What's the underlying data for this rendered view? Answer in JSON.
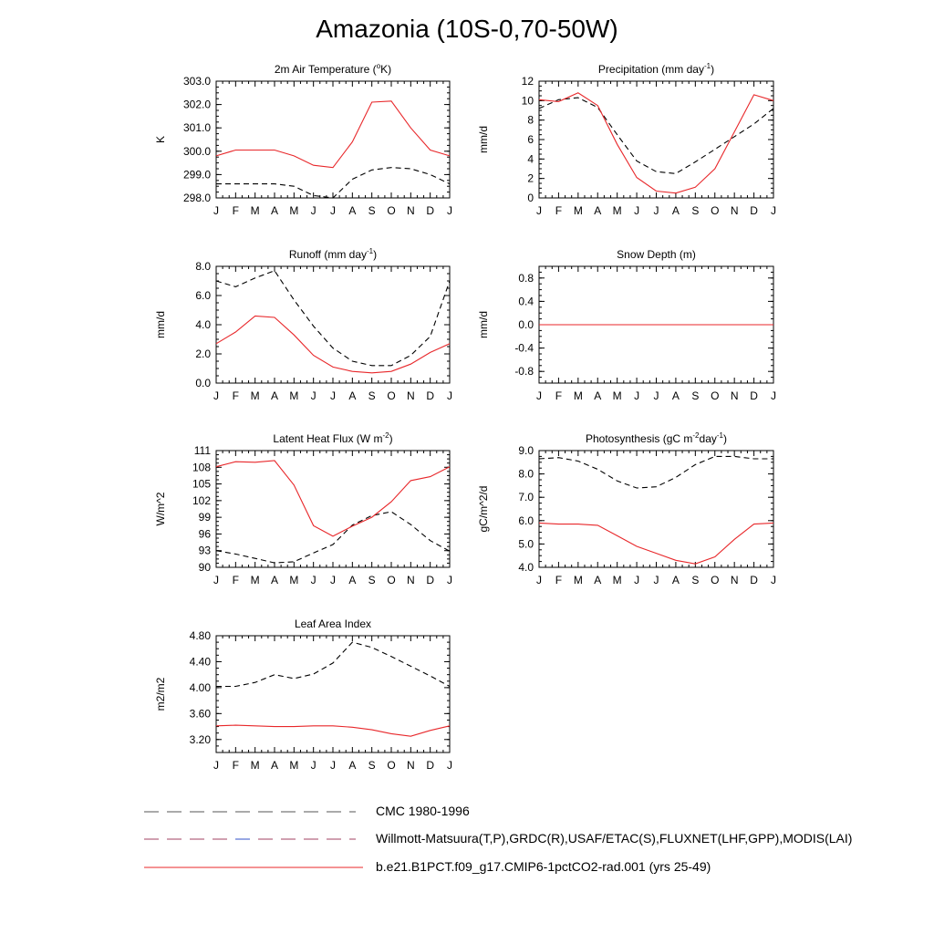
{
  "figure": {
    "title": "Amazonia (10S-0,70-50W)"
  },
  "colors": {
    "model": "#e8272a",
    "obs": "#000000",
    "obs_alt": "#3050c8"
  },
  "legend": [
    {
      "label": "CMC 1980-1996",
      "style": "dashed",
      "color": "#555555"
    },
    {
      "label": "Willmott-Matsuura(T,P),GRDC(R),USAF/ETAC(S),FLUXNET(LHF,GPP),MODIS(LAI)",
      "style": "dashed-multi",
      "color": "#a04060"
    },
    {
      "label": "b.e21.B1PCT.f09_g17.CMIP6-1pctCO2-rad.001 (yrs 25-49)",
      "style": "solid",
      "color": "#e8272a"
    }
  ],
  "chart_data": [
    {
      "type": "line",
      "title": "2m Air Temperature (°K)",
      "ylabel": "K",
      "ylim": [
        298.0,
        303.0
      ],
      "yticks": [
        "298.0",
        "299.0",
        "300.0",
        "301.0",
        "302.0",
        "303.0"
      ],
      "x": [
        "J",
        "F",
        "M",
        "A",
        "M",
        "J",
        "J",
        "A",
        "S",
        "O",
        "N",
        "D",
        "J"
      ],
      "series": [
        {
          "style": "solid",
          "values": [
            299.8,
            300.05,
            300.05,
            300.05,
            299.8,
            299.4,
            299.3,
            300.4,
            302.1,
            302.15,
            301.0,
            300.05,
            299.8
          ]
        },
        {
          "style": "dashed",
          "values": [
            298.6,
            298.6,
            298.6,
            298.6,
            298.5,
            298.1,
            298.0,
            298.8,
            299.2,
            299.3,
            299.25,
            299.0,
            298.6
          ]
        }
      ]
    },
    {
      "type": "line",
      "title": "Precipitation (mm day-1)",
      "ylabel": "mm/d",
      "ylim": [
        0,
        12
      ],
      "yticks": [
        "0",
        "2",
        "4",
        "6",
        "8",
        "10",
        "12"
      ],
      "x": [
        "J",
        "F",
        "M",
        "A",
        "M",
        "J",
        "J",
        "A",
        "S",
        "O",
        "N",
        "D",
        "J"
      ],
      "series": [
        {
          "style": "solid",
          "values": [
            10.1,
            9.9,
            10.8,
            9.5,
            5.5,
            2.1,
            0.7,
            0.5,
            1.1,
            3.0,
            6.8,
            10.6,
            10.0
          ]
        },
        {
          "style": "dashed",
          "values": [
            9.2,
            10.1,
            10.3,
            9.3,
            6.5,
            3.8,
            2.7,
            2.5,
            3.7,
            5.0,
            6.3,
            7.6,
            9.2
          ]
        }
      ]
    },
    {
      "type": "line",
      "title": "Runoff (mm day-1)",
      "ylabel": "mm/d",
      "ylim": [
        0.0,
        8.0
      ],
      "yticks": [
        "0.0",
        "2.0",
        "4.0",
        "6.0",
        "8.0"
      ],
      "x": [
        "J",
        "F",
        "M",
        "A",
        "M",
        "J",
        "J",
        "A",
        "S",
        "O",
        "N",
        "D",
        "J"
      ],
      "series": [
        {
          "style": "solid",
          "values": [
            2.7,
            3.5,
            4.6,
            4.5,
            3.3,
            1.9,
            1.1,
            0.8,
            0.7,
            0.8,
            1.3,
            2.1,
            2.7
          ]
        },
        {
          "style": "dashed",
          "values": [
            7.0,
            6.6,
            7.2,
            7.7,
            5.7,
            3.9,
            2.4,
            1.5,
            1.2,
            1.2,
            1.9,
            3.2,
            7.0
          ]
        }
      ]
    },
    {
      "type": "line",
      "title": "Snow Depth (m)",
      "ylabel": "mm/d",
      "ylim": [
        -1.0,
        1.0
      ],
      "yticks": [
        "-0.8",
        "-0.4",
        "0.0",
        "0.4",
        "0.8"
      ],
      "x": [
        "J",
        "F",
        "M",
        "A",
        "M",
        "J",
        "J",
        "A",
        "S",
        "O",
        "N",
        "D",
        "J"
      ],
      "series": [
        {
          "style": "solid",
          "values": [
            0,
            0,
            0,
            0,
            0,
            0,
            0,
            0,
            0,
            0,
            0,
            0,
            0
          ]
        },
        {
          "style": "dashed",
          "values": [
            0,
            0,
            0,
            0,
            0,
            0,
            0,
            0,
            0,
            0,
            0,
            0,
            0
          ]
        }
      ]
    },
    {
      "type": "line",
      "title": "Latent Heat Flux (W m-2)",
      "ylabel": "W/m^2",
      "ylim": [
        90,
        111
      ],
      "yticks": [
        "90",
        "93",
        "96",
        "99",
        "102",
        "105",
        "108",
        "111"
      ],
      "x": [
        "J",
        "F",
        "M",
        "A",
        "M",
        "J",
        "J",
        "A",
        "S",
        "O",
        "N",
        "D",
        "J"
      ],
      "series": [
        {
          "style": "solid",
          "values": [
            108.1,
            109.0,
            108.9,
            109.2,
            104.8,
            97.5,
            95.6,
            97.4,
            99.0,
            101.8,
            105.6,
            106.3,
            108.1
          ]
        },
        {
          "style": "dashed",
          "values": [
            93.0,
            92.4,
            91.6,
            90.8,
            91.0,
            92.6,
            94.1,
            97.6,
            99.3,
            100.0,
            97.7,
            94.8,
            92.9
          ]
        }
      ]
    },
    {
      "type": "line",
      "title": "Photosynthesis (gC m-2day-1)",
      "ylabel": "gC/m^2/d",
      "ylim": [
        4.0,
        9.0
      ],
      "yticks": [
        "4.0",
        "5.0",
        "6.0",
        "7.0",
        "8.0",
        "9.0"
      ],
      "x": [
        "J",
        "F",
        "M",
        "A",
        "M",
        "J",
        "J",
        "A",
        "S",
        "O",
        "N",
        "D",
        "J"
      ],
      "series": [
        {
          "style": "solid",
          "values": [
            5.9,
            5.85,
            5.85,
            5.8,
            5.35,
            4.9,
            4.6,
            4.3,
            4.15,
            4.45,
            5.2,
            5.85,
            5.9
          ]
        },
        {
          "style": "dashed",
          "values": [
            8.65,
            8.7,
            8.55,
            8.2,
            7.7,
            7.4,
            7.45,
            7.85,
            8.4,
            8.75,
            8.75,
            8.65,
            8.65
          ]
        }
      ]
    },
    {
      "type": "line",
      "title": "Leaf Area Index",
      "ylabel": "m2/m2",
      "ylim": [
        3.0,
        4.8
      ],
      "yticks": [
        "3.20",
        "3.60",
        "4.00",
        "4.40",
        "4.80"
      ],
      "x": [
        "J",
        "F",
        "M",
        "A",
        "M",
        "J",
        "J",
        "A",
        "S",
        "O",
        "N",
        "D",
        "J"
      ],
      "series": [
        {
          "style": "solid",
          "values": [
            3.41,
            3.42,
            3.41,
            3.4,
            3.4,
            3.41,
            3.41,
            3.39,
            3.35,
            3.29,
            3.25,
            3.34,
            3.41
          ]
        },
        {
          "style": "dashed",
          "values": [
            4.02,
            4.02,
            4.08,
            4.2,
            4.14,
            4.21,
            4.38,
            4.7,
            4.62,
            4.48,
            4.33,
            4.18,
            4.02
          ]
        }
      ]
    }
  ]
}
